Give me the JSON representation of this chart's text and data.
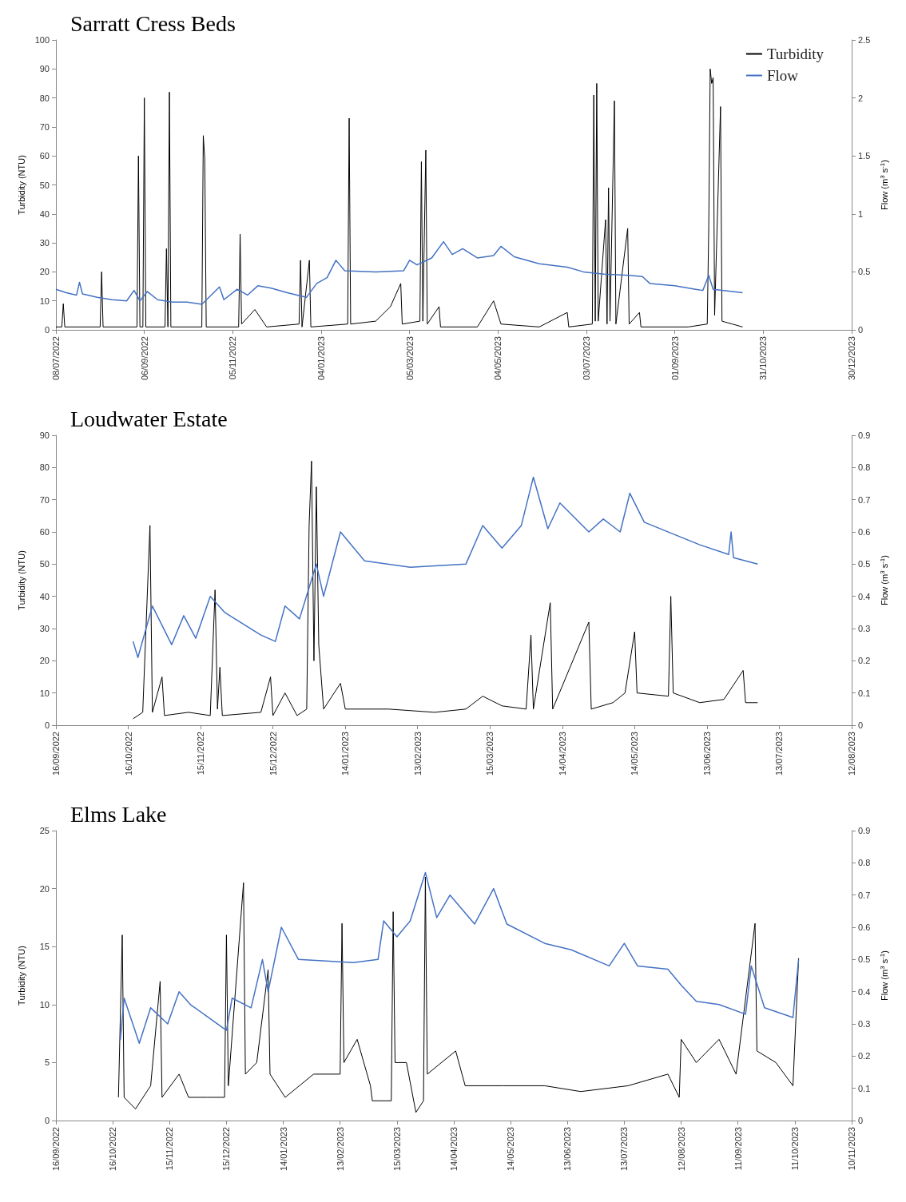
{
  "chart_data": [
    {
      "type": "line",
      "title": "Sarratt Cress Beds",
      "ylabel": "Turbidity (NTU)",
      "y2label": "Flow (m$^{3}$ s$^{-1}$)",
      "legend": "top right",
      "xlim": [
        "2022-07-08",
        "2023-12-30"
      ],
      "xticks": [
        {
          "value": "2022-07-08",
          "label": "08/07/2022"
        },
        {
          "value": "2022-09-06",
          "label": "06/09/2022"
        },
        {
          "value": "2022-11-05",
          "label": "05/11/2022"
        },
        {
          "value": "2023-01-04",
          "label": "04/01/2023"
        },
        {
          "value": "2023-03-05",
          "label": "05/03/2023"
        },
        {
          "value": "2023-05-04",
          "label": "04/05/2023"
        },
        {
          "value": "2023-07-03",
          "label": "03/07/2023"
        },
        {
          "value": "2023-09-01",
          "label": "01/09/2023"
        },
        {
          "value": "2023-10-31",
          "label": "31/10/2023"
        },
        {
          "value": "2023-12-30",
          "label": "30/12/2023"
        }
      ],
      "ylim": [
        0,
        100
      ],
      "yticks": [
        0,
        10,
        20,
        30,
        40,
        50,
        60,
        70,
        80,
        90,
        100
      ],
      "y2lim": [
        0,
        2.5
      ],
      "y2ticks": [
        0,
        0.5,
        1,
        1.5,
        2,
        2.5
      ],
      "series": [
        {
          "name": "Turbidity",
          "color": "#000000",
          "x": [
            "2022-07-08",
            "2022-07-12",
            "2022-07-13",
            "2022-07-14",
            "2022-08-07",
            "2022-08-08",
            "2022-08-09",
            "2022-09-01",
            "2022-09-02",
            "2022-09-03",
            "2022-09-05",
            "2022-09-06",
            "2022-09-07",
            "2022-09-20",
            "2022-09-21",
            "2022-09-22",
            "2022-09-23",
            "2022-09-24",
            "2022-10-15",
            "2022-10-16",
            "2022-10-17",
            "2022-10-18",
            "2022-11-09",
            "2022-11-10",
            "2022-11-11",
            "2022-11-20",
            "2022-11-28",
            "2022-12-20",
            "2022-12-21",
            "2022-12-22",
            "2022-12-27",
            "2022-12-28",
            "2023-01-22",
            "2023-01-23",
            "2023-01-24",
            "2023-02-10",
            "2023-02-20",
            "2023-02-27",
            "2023-02-28",
            "2023-03-12",
            "2023-03-13",
            "2023-03-14",
            "2023-03-16",
            "2023-03-17",
            "2023-03-25",
            "2023-03-26",
            "2023-04-20",
            "2023-05-01",
            "2023-05-06",
            "2023-06-01",
            "2023-06-20",
            "2023-06-21",
            "2023-07-07",
            "2023-07-08",
            "2023-07-09",
            "2023-07-10",
            "2023-07-11",
            "2023-07-16",
            "2023-07-17",
            "2023-07-18",
            "2023-07-19",
            "2023-07-22",
            "2023-07-23",
            "2023-07-31",
            "2023-08-01",
            "2023-08-08",
            "2023-08-09",
            "2023-09-10",
            "2023-09-23",
            "2023-09-24",
            "2023-09-25",
            "2023-09-26",
            "2023-09-27",
            "2023-09-28",
            "2023-10-02",
            "2023-10-03",
            "2023-10-10",
            "2023-10-17"
          ],
          "values": [
            1,
            1,
            9,
            1,
            1,
            20,
            1,
            1,
            60,
            1,
            1,
            80,
            1,
            1,
            28,
            1,
            82,
            1,
            1,
            67,
            59,
            1,
            1,
            33,
            2,
            7,
            1,
            2,
            24,
            1,
            24,
            1,
            2,
            73,
            2,
            3,
            8,
            16,
            2,
            3,
            58,
            3,
            62,
            2,
            8,
            1,
            1,
            10,
            2,
            1,
            6,
            1,
            2,
            81,
            3,
            85,
            3,
            38,
            2,
            49,
            3,
            79,
            2,
            35,
            2,
            6,
            1,
            1,
            2,
            35,
            90,
            85,
            87,
            5,
            77,
            3,
            2,
            1
          ]
        },
        {
          "name": "Flow",
          "color": "#4472c4",
          "axis": "y2",
          "x": [
            "2022-07-08",
            "2022-07-15",
            "2022-07-22",
            "2022-07-24",
            "2022-07-26",
            "2022-08-05",
            "2022-08-15",
            "2022-08-25",
            "2022-08-30",
            "2022-09-03",
            "2022-09-08",
            "2022-09-15",
            "2022-09-25",
            "2022-10-05",
            "2022-10-15",
            "2022-10-27",
            "2022-10-30",
            "2022-11-08",
            "2022-11-15",
            "2022-11-22",
            "2022-12-01",
            "2022-12-12",
            "2022-12-25",
            "2023-01-01",
            "2023-01-08",
            "2023-01-14",
            "2023-01-20",
            "2023-02-10",
            "2023-03-01",
            "2023-03-05",
            "2023-03-10",
            "2023-03-20",
            "2023-03-28",
            "2023-04-03",
            "2023-04-10",
            "2023-04-20",
            "2023-05-01",
            "2023-05-06",
            "2023-05-15",
            "2023-06-01",
            "2023-06-20",
            "2023-07-01",
            "2023-07-15",
            "2023-08-01",
            "2023-08-10",
            "2023-08-15",
            "2023-09-01",
            "2023-09-15",
            "2023-09-20",
            "2023-09-24",
            "2023-09-27",
            "2023-10-10",
            "2023-10-17"
          ],
          "values": [
            0.35,
            0.32,
            0.3,
            0.41,
            0.31,
            0.28,
            0.26,
            0.25,
            0.34,
            0.25,
            0.33,
            0.26,
            0.24,
            0.24,
            0.22,
            0.37,
            0.26,
            0.35,
            0.3,
            0.38,
            0.36,
            0.32,
            0.28,
            0.4,
            0.45,
            0.6,
            0.51,
            0.5,
            0.51,
            0.6,
            0.56,
            0.62,
            0.76,
            0.65,
            0.7,
            0.62,
            0.64,
            0.72,
            0.63,
            0.57,
            0.54,
            0.5,
            0.48,
            0.47,
            0.46,
            0.4,
            0.38,
            0.35,
            0.34,
            0.47,
            0.35,
            0.33,
            0.32
          ]
        }
      ]
    },
    {
      "type": "line",
      "title": "Loudwater Estate",
      "ylabel": "Turbidity (NTU)",
      "y2label": "Flow (m$^{3}$ s$^{-1}$)",
      "xlim": [
        "2022-09-16",
        "2023-08-12"
      ],
      "xticks": [
        {
          "value": "2022-09-16",
          "label": "16/09/2022"
        },
        {
          "value": "2022-10-16",
          "label": "16/10/2022"
        },
        {
          "value": "2022-11-15",
          "label": "15/11/2022"
        },
        {
          "value": "2022-12-15",
          "label": "15/12/2022"
        },
        {
          "value": "2023-01-14",
          "label": "14/01/2023"
        },
        {
          "value": "2023-02-13",
          "label": "13/02/2023"
        },
        {
          "value": "2023-03-15",
          "label": "15/03/2023"
        },
        {
          "value": "2023-04-14",
          "label": "14/04/2023"
        },
        {
          "value": "2023-05-14",
          "label": "14/05/2023"
        },
        {
          "value": "2023-06-13",
          "label": "13/06/2023"
        },
        {
          "value": "2023-07-13",
          "label": "13/07/2023"
        },
        {
          "value": "2023-08-12",
          "label": "12/08/2023"
        }
      ],
      "ylim": [
        0,
        90
      ],
      "yticks": [
        0,
        10,
        20,
        30,
        40,
        50,
        60,
        70,
        80,
        90
      ],
      "y2lim": [
        0,
        0.9
      ],
      "y2ticks": [
        0,
        0.1,
        0.2,
        0.3,
        0.4,
        0.5,
        0.6,
        0.7,
        0.8,
        0.9
      ],
      "series": [
        {
          "color": "#000000",
          "x": [
            "2022-10-18",
            "2022-10-22",
            "2022-10-25",
            "2022-10-26",
            "2022-10-30",
            "2022-10-31",
            "2022-11-10",
            "2022-11-19",
            "2022-11-21",
            "2022-11-22",
            "2022-11-23",
            "2022-11-24",
            "2022-12-10",
            "2022-12-14",
            "2022-12-15",
            "2022-12-20",
            "2022-12-25",
            "2022-12-29",
            "2022-12-30",
            "2022-12-31",
            "2023-01-01",
            "2023-01-02",
            "2023-01-03",
            "2023-01-05",
            "2023-01-12",
            "2023-01-14",
            "2023-02-01",
            "2023-02-20",
            "2023-03-05",
            "2023-03-12",
            "2023-03-20",
            "2023-03-30",
            "2023-04-01",
            "2023-04-02",
            "2023-04-09",
            "2023-04-10",
            "2023-04-25",
            "2023-04-26",
            "2023-05-05",
            "2023-05-10",
            "2023-05-14",
            "2023-05-15",
            "2023-05-28",
            "2023-05-29",
            "2023-05-30",
            "2023-06-10",
            "2023-06-20",
            "2023-06-28",
            "2023-06-29",
            "2023-07-04"
          ],
          "values": [
            2,
            4,
            62,
            4,
            15,
            3,
            4,
            3,
            42,
            5,
            18,
            3,
            4,
            15,
            3,
            10,
            3,
            5,
            62,
            82,
            20,
            74,
            25,
            5,
            13,
            5,
            5,
            4,
            5,
            9,
            6,
            5,
            28,
            5,
            38,
            5,
            32,
            5,
            7,
            10,
            29,
            10,
            9,
            40,
            10,
            7,
            8,
            17,
            7,
            7
          ]
        },
        {
          "color": "#4472c4",
          "axis": "y2",
          "x": [
            "2022-10-18",
            "2022-10-20",
            "2022-10-26",
            "2022-11-03",
            "2022-11-08",
            "2022-11-13",
            "2022-11-19",
            "2022-11-25",
            "2022-12-10",
            "2022-12-16",
            "2022-12-20",
            "2022-12-26",
            "2023-01-02",
            "2023-01-05",
            "2023-01-12",
            "2023-01-22",
            "2023-02-10",
            "2023-03-05",
            "2023-03-12",
            "2023-03-20",
            "2023-03-28",
            "2023-04-02",
            "2023-04-08",
            "2023-04-13",
            "2023-04-25",
            "2023-05-01",
            "2023-05-08",
            "2023-05-12",
            "2023-05-18",
            "2023-06-10",
            "2023-06-22",
            "2023-06-23",
            "2023-06-24",
            "2023-07-04"
          ],
          "values": [
            0.26,
            0.21,
            0.37,
            0.25,
            0.34,
            0.27,
            0.4,
            0.35,
            0.28,
            0.26,
            0.37,
            0.33,
            0.5,
            0.4,
            0.6,
            0.51,
            0.49,
            0.5,
            0.62,
            0.55,
            0.62,
            0.77,
            0.61,
            0.69,
            0.6,
            0.64,
            0.6,
            0.72,
            0.63,
            0.56,
            0.53,
            0.6,
            0.52,
            0.5
          ]
        }
      ]
    },
    {
      "type": "line",
      "title": "Elms Lake",
      "ylabel": "Turbidity (NTU)",
      "y2label": "Flow (m$^{3}$ s$^{-1}$)",
      "xlim": [
        "2022-09-16",
        "2023-11-10"
      ],
      "xticks": [
        {
          "value": "2022-09-16",
          "label": "16/09/2022"
        },
        {
          "value": "2022-10-16",
          "label": "16/10/2022"
        },
        {
          "value": "2022-11-15",
          "label": "15/11/2022"
        },
        {
          "value": "2022-12-15",
          "label": "15/12/2022"
        },
        {
          "value": "2023-01-14",
          "label": "14/01/2023"
        },
        {
          "value": "2023-02-13",
          "label": "13/02/2023"
        },
        {
          "value": "2023-03-15",
          "label": "15/03/2023"
        },
        {
          "value": "2023-04-14",
          "label": "14/04/2023"
        },
        {
          "value": "2023-05-14",
          "label": "14/05/2023"
        },
        {
          "value": "2023-06-13",
          "label": "13/06/2023"
        },
        {
          "value": "2023-07-13",
          "label": "13/07/2023"
        },
        {
          "value": "2023-08-12",
          "label": "12/08/2023"
        },
        {
          "value": "2023-09-11",
          "label": "11/09/2023"
        },
        {
          "value": "2023-10-11",
          "label": "11/10/2023"
        },
        {
          "value": "2023-11-10",
          "label": "10/11/2023"
        }
      ],
      "ylim": [
        0,
        25
      ],
      "yticks": [
        0,
        5,
        10,
        15,
        20,
        25
      ],
      "y2lim": [
        0,
        0.9
      ],
      "y2ticks": [
        0,
        0.1,
        0.2,
        0.3,
        0.4,
        0.5,
        0.6,
        0.7,
        0.8,
        0.9
      ],
      "series": [
        {
          "color": "#000000",
          "x": [
            "2022-10-19",
            "2022-10-21",
            "2022-10-22",
            "2022-10-28",
            "2022-11-05",
            "2022-11-10",
            "2022-11-11",
            "2022-11-20",
            "2022-11-25",
            "2022-12-05",
            "2022-12-14",
            "2022-12-15",
            "2022-12-16",
            "2022-12-24",
            "2022-12-25",
            "2022-12-31",
            "2023-01-06",
            "2023-01-07",
            "2023-01-15",
            "2023-01-30",
            "2023-02-13",
            "2023-02-14",
            "2023-02-15",
            "2023-02-22",
            "2023-03-01",
            "2023-03-02",
            "2023-03-12",
            "2023-03-13",
            "2023-03-14",
            "2023-03-20",
            "2023-03-25",
            "2023-03-29",
            "2023-03-30",
            "2023-03-31",
            "2023-04-15",
            "2023-04-20",
            "2023-05-10",
            "2023-06-01",
            "2023-06-20",
            "2023-07-15",
            "2023-08-05",
            "2023-08-11",
            "2023-08-12",
            "2023-08-20",
            "2023-09-01",
            "2023-09-10",
            "2023-09-20",
            "2023-09-21",
            "2023-10-01",
            "2023-10-10",
            "2023-10-13"
          ],
          "values": [
            2,
            16,
            2,
            1,
            3,
            12,
            2,
            4,
            2,
            2,
            2,
            16,
            3,
            20.5,
            4,
            5,
            13,
            4,
            2,
            4,
            4,
            17,
            5,
            7,
            3,
            1.7,
            1.7,
            18,
            5,
            5,
            0.7,
            1.7,
            21,
            4,
            6,
            3,
            3,
            3,
            2.5,
            3,
            4,
            2,
            7,
            5,
            7,
            4,
            17,
            6,
            5,
            3,
            14
          ]
        },
        {
          "color": "#4472c4",
          "axis": "y2",
          "x": [
            "2022-10-20",
            "2022-10-22",
            "2022-10-30",
            "2022-11-05",
            "2022-11-14",
            "2022-11-20",
            "2022-11-26",
            "2022-12-15",
            "2022-12-18",
            "2022-12-28",
            "2023-01-03",
            "2023-01-06",
            "2023-01-13",
            "2023-01-22",
            "2023-02-20",
            "2023-03-05",
            "2023-03-08",
            "2023-03-15",
            "2023-03-22",
            "2023-03-30",
            "2023-04-05",
            "2023-04-12",
            "2023-04-25",
            "2023-05-05",
            "2023-05-12",
            "2023-06-01",
            "2023-06-15",
            "2023-07-05",
            "2023-07-13",
            "2023-07-20",
            "2023-08-05",
            "2023-08-12",
            "2023-08-20",
            "2023-09-01",
            "2023-09-15",
            "2023-09-18",
            "2023-09-25",
            "2023-10-10",
            "2023-10-13"
          ],
          "values": [
            0.25,
            0.38,
            0.24,
            0.35,
            0.3,
            0.4,
            0.36,
            0.28,
            0.38,
            0.35,
            0.5,
            0.4,
            0.6,
            0.5,
            0.49,
            0.5,
            0.62,
            0.57,
            0.62,
            0.77,
            0.63,
            0.7,
            0.61,
            0.72,
            0.61,
            0.55,
            0.53,
            0.48,
            0.55,
            0.48,
            0.47,
            0.42,
            0.37,
            0.36,
            0.33,
            0.48,
            0.35,
            0.32,
            0.5
          ]
        }
      ]
    }
  ]
}
